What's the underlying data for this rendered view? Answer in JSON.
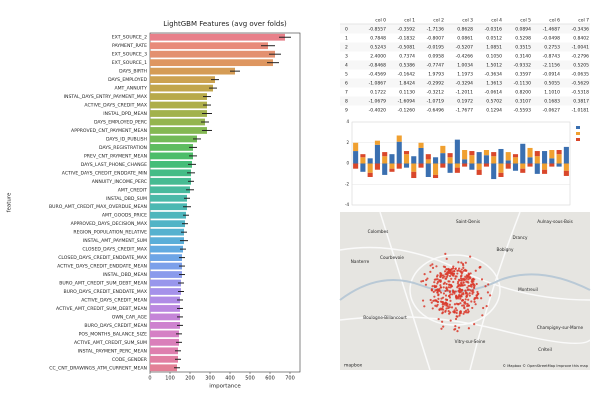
{
  "chart_data": [
    {
      "type": "hbar",
      "title": "LightGBM Features (avg over folds)",
      "x_label": "importance",
      "y_label": "feature",
      "categories": [
        "EXT_SOURCE_2",
        "PAYMENT_RATE",
        "EXT_SOURCE_3",
        "EXT_SOURCE_1",
        "DAYS_BIRTH",
        "DAYS_EMPLOYED",
        "AMT_ANNUITY",
        "INSTAL_DAYS_ENTRY_PAYMENT_MAX",
        "ACTIVE_DAYS_CREDIT_MAX",
        "INSTAL_DPD_MEAN",
        "DAYS_EMPLOYED_PERC",
        "APPROVED_CNT_PAYMENT_MEAN",
        "DAYS_ID_PUBLISH",
        "DAYS_REGISTRATION",
        "PREV_CNT_PAYMENT_MEAN",
        "DAYS_LAST_PHONE_CHANGE",
        "ACTIVE_DAYS_CREDIT_ENDDATE_MIN",
        "ANNUITY_INCOME_PERC",
        "AMT_CREDIT",
        "INSTAL_DBD_SUM",
        "BURO_AMT_CREDIT_MAX_OVERDUE_MEAN",
        "AMT_GOODS_PRICE",
        "APPROVED_DAYS_DECISION_MAX",
        "REGION_POPULATION_RELATIVE",
        "INSTAL_AMT_PAYMENT_SUM",
        "CLOSED_DAYS_CREDIT_MAX",
        "CLOSED_DAYS_CREDIT_ENDDATE_MAX",
        "ACTIVE_DAYS_CREDIT_ENDDATE_MEAN",
        "INSTAL_DBD_MEAN",
        "BURO_AMT_CREDIT_SUM_DEBT_MEAN",
        "BURO_DAYS_CREDIT_ENDDATE_MAX",
        "ACTIVE_DAYS_CREDIT_MEAN",
        "ACTIVE_AMT_CREDIT_SUM_DEBT_MEAN",
        "OWN_CAR_AGE",
        "BURO_DAYS_CREDIT_MEAN",
        "POS_MONTHS_BALANCE_SIZE",
        "ACTIVE_AMT_CREDIT_SUM_SUM",
        "INSTAL_PAYMENT_PERC_MEAN",
        "CODE_GENDER",
        "CC_CNT_DRAWINGS_ATM_CURRENT_MEAN"
      ],
      "values": [
        675,
        590,
        625,
        615,
        425,
        325,
        315,
        285,
        285,
        285,
        275,
        285,
        235,
        215,
        215,
        210,
        205,
        205,
        200,
        185,
        185,
        180,
        175,
        170,
        170,
        165,
        160,
        160,
        160,
        155,
        155,
        150,
        150,
        150,
        150,
        145,
        145,
        140,
        140,
        135
      ],
      "errors": [
        30,
        35,
        30,
        30,
        25,
        20,
        20,
        20,
        20,
        25,
        20,
        25,
        20,
        20,
        20,
        20,
        20,
        15,
        20,
        15,
        20,
        15,
        15,
        15,
        20,
        15,
        15,
        15,
        15,
        15,
        15,
        15,
        15,
        15,
        15,
        15,
        15,
        15,
        15,
        15
      ],
      "colors": [
        "#e8808a",
        "#e88a7a",
        "#e39070",
        "#de9660",
        "#d59c55",
        "#cca250",
        "#c2a64c",
        "#b8aa4a",
        "#aeae4a",
        "#a2b24c",
        "#94b54f",
        "#84b853",
        "#72ba58",
        "#5ebc60",
        "#4cbd6a",
        "#45bd78",
        "#45bc86",
        "#46bb92",
        "#48ba9d",
        "#4ab9a8",
        "#4cb8b2",
        "#4eb6bc",
        "#51b4c6",
        "#55b1cf",
        "#5aaed8",
        "#62aae0",
        "#6ea5e6",
        "#7ca0ea",
        "#8a9bec",
        "#9896ec",
        "#a591ea",
        "#b08ce6",
        "#bb88e0",
        "#c585d8",
        "#ce82cf",
        "#d580c5",
        "#da7fba",
        "#de7fae",
        "#e17fa2",
        "#e38096"
      ],
      "xlim": [
        0,
        750
      ],
      "xticks": [
        0,
        100,
        200,
        300,
        400,
        500,
        600,
        700
      ]
    },
    {
      "type": "stacked_bar",
      "ylim": [
        -4,
        4
      ],
      "yticks": [
        -4,
        -2,
        0,
        2,
        4
      ],
      "grid": true,
      "legend": "upper right",
      "series": [
        {
          "color": "#3a6fb0",
          "values": [
            1.2,
            -0.8,
            0.5,
            1.8,
            -1.1,
            0.9,
            2.1,
            -0.4,
            0.7,
            1.5,
            -1.3,
            0.6,
            1.0,
            -0.9,
            2.3,
            0.4,
            -0.6,
            1.1,
            0.8,
            -1.5,
            1.4,
            0.3,
            -0.7,
            1.9,
            0.6,
            -1.0,
            1.2,
            0.5,
            -0.3,
            1.6
          ]
        },
        {
          "color": "#f0a030",
          "values": [
            0.8,
            0.6,
            -0.9,
            0.4,
            0.7,
            -0.5,
            0.6,
            0.9,
            -0.8,
            0.5,
            0.4,
            -1.1,
            0.7,
            0.6,
            -0.4,
            0.9,
            0.8,
            -0.6,
            0.5,
            0.7,
            -0.9,
            0.8,
            0.6,
            -0.5,
            0.9,
            0.7,
            -0.6,
            0.8,
            0.9,
            -0.7
          ]
        },
        {
          "color": "#d9472b",
          "values": [
            -0.5,
            0.3,
            -0.4,
            -0.6,
            0.4,
            -0.3,
            -0.5,
            0.3,
            -0.6,
            -0.4,
            0.5,
            -0.3,
            -0.4,
            0.4,
            -0.5,
            -0.3,
            0.4,
            -0.5,
            -0.3,
            0.4,
            -0.4,
            -0.5,
            0.3,
            -0.4,
            -0.3,
            0.5,
            -0.4,
            -0.3,
            0.4,
            -0.5
          ]
        }
      ]
    }
  ],
  "table": {
    "header": [
      "col 0",
      "col 1",
      "col 2",
      "col 3",
      "col 4",
      "col 5",
      "col 6",
      "col 7"
    ],
    "rows": [
      [
        "0",
        "-0.8557",
        "-0.3592",
        "-1.7136",
        "0.8628",
        "-0.0316",
        "0.0894",
        "-1.4687",
        "-0.3436"
      ],
      [
        "1",
        "0.7848",
        "-0.1832",
        "-0.8007",
        "0.0861",
        "0.0512",
        "0.5298",
        "-0.0498",
        "0.8402"
      ],
      [
        "2",
        "0.5243",
        "-0.5081",
        "-0.0195",
        "-0.5207",
        "1.0851",
        "0.3515",
        "0.2753",
        "-1.0041"
      ],
      [
        "3",
        "2.4000",
        "0.7374",
        "0.0958",
        "-0.4266",
        "0.1050",
        "0.3140",
        "-0.8743",
        "-0.2796"
      ],
      [
        "4",
        "-0.8468",
        "0.5386",
        "-0.7747",
        "1.0034",
        "1.5012",
        "-0.9332",
        "-2.1156",
        "0.5205"
      ],
      [
        "5",
        "-0.4569",
        "-0.1642",
        "1.9793",
        "1.1973",
        "-0.3634",
        "0.3597",
        "-0.0914",
        "-0.0635"
      ],
      [
        "6",
        "-1.0867",
        "1.8424",
        "-0.2992",
        "-0.3294",
        "1.3613",
        "-0.1130",
        "0.5055",
        "-0.5629"
      ],
      [
        "7",
        "0.1722",
        "0.1130",
        "-0.3212",
        "-1.2011",
        "-0.0614",
        "0.8200",
        "1.1010",
        "-0.5318"
      ],
      [
        "8",
        "-1.0679",
        "-1.6094",
        "-1.0719",
        "0.1972",
        "0.5702",
        "0.3107",
        "0.1683",
        "0.3817"
      ],
      [
        "9",
        "-0.4020",
        "-0.1260",
        "-0.6496",
        "-1.7677",
        "0.1294",
        "-0.5593",
        "-0.0627",
        "-1.0181"
      ]
    ]
  },
  "map": {
    "places": [
      "Saint-Denis",
      "Colombes",
      "Aulnay-sous-Bois",
      "Drancy",
      "Bobigny",
      "Nanterre",
      "Courbevoie",
      "Montreuil",
      "Boulogne-Billancourt",
      "Champigny-sur-Marne",
      "Vitry-sur-Seine",
      "Créteil"
    ],
    "attribution": "© Mapbox © OpenStreetMap Improve this map",
    "logo": "mapbox"
  }
}
